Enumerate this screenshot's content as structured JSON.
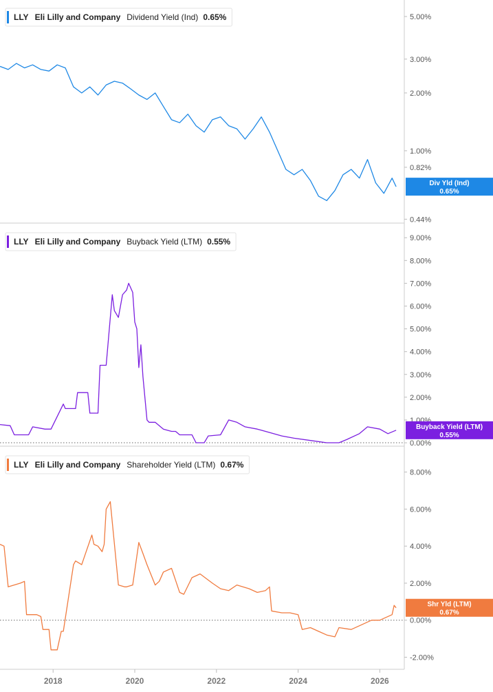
{
  "chart_data": [
    {
      "type": "line",
      "ticker": "LLY",
      "company": "Eli Lilly and Company",
      "metric": "Dividend Yield (Ind)",
      "current_value": "0.65%",
      "badge_label": "Div Yld (Ind)",
      "badge_value": "0.65%",
      "color": "#1e88e5",
      "y_scale": "log",
      "ylim": [
        0.42,
        5.8
      ],
      "y_ticks": [
        {
          "v": 5.0,
          "label": "5.00%"
        },
        {
          "v": 3.0,
          "label": "3.00%"
        },
        {
          "v": 2.0,
          "label": "2.00%"
        },
        {
          "v": 1.0,
          "label": "1.00%"
        },
        {
          "v": 0.82,
          "label": "0.82%"
        },
        {
          "v": 0.44,
          "label": "0.44%"
        }
      ],
      "zero_line": false,
      "x": [
        2016.7,
        2016.9,
        2017.1,
        2017.3,
        2017.5,
        2017.7,
        2017.9,
        2018.1,
        2018.3,
        2018.5,
        2018.7,
        2018.9,
        2019.1,
        2019.3,
        2019.5,
        2019.7,
        2019.9,
        2020.1,
        2020.3,
        2020.5,
        2020.7,
        2020.9,
        2021.1,
        2021.3,
        2021.5,
        2021.7,
        2021.9,
        2022.1,
        2022.3,
        2022.5,
        2022.7,
        2022.9,
        2023.1,
        2023.3,
        2023.5,
        2023.7,
        2023.9,
        2024.1,
        2024.3,
        2024.5,
        2024.7,
        2024.9,
        2025.1,
        2025.3,
        2025.5,
        2025.7,
        2025.9,
        2026.1,
        2026.3,
        2026.4
      ],
      "values": [
        2.75,
        2.65,
        2.85,
        2.7,
        2.8,
        2.65,
        2.6,
        2.8,
        2.7,
        2.15,
        2.0,
        2.15,
        1.95,
        2.2,
        2.3,
        2.25,
        2.1,
        1.95,
        1.85,
        2.0,
        1.7,
        1.45,
        1.4,
        1.55,
        1.35,
        1.25,
        1.45,
        1.5,
        1.35,
        1.3,
        1.15,
        1.3,
        1.5,
        1.25,
        1.0,
        0.8,
        0.75,
        0.8,
        0.7,
        0.58,
        0.55,
        0.62,
        0.75,
        0.8,
        0.72,
        0.9,
        0.68,
        0.6,
        0.72,
        0.65
      ]
    },
    {
      "type": "line",
      "ticker": "LLY",
      "company": "Eli Lilly and Company",
      "metric": "Buyback Yield (LTM)",
      "current_value": "0.55%",
      "badge_label": "Buyback Yield (LTM)",
      "badge_value": "0.55%",
      "color": "#7b1fe0",
      "y_scale": "linear",
      "ylim": [
        -0.15,
        9.4
      ],
      "y_ticks": [
        {
          "v": 9.0,
          "label": "9.00%"
        },
        {
          "v": 8.0,
          "label": "8.00%"
        },
        {
          "v": 7.0,
          "label": "7.00%"
        },
        {
          "v": 6.0,
          "label": "6.00%"
        },
        {
          "v": 5.0,
          "label": "5.00%"
        },
        {
          "v": 4.0,
          "label": "4.00%"
        },
        {
          "v": 3.0,
          "label": "3.00%"
        },
        {
          "v": 2.0,
          "label": "2.00%"
        },
        {
          "v": 1.0,
          "label": "1.00%"
        },
        {
          "v": 0.0,
          "label": "0.00%"
        }
      ],
      "zero_line": true,
      "x": [
        2016.7,
        2016.95,
        2017.05,
        2017.4,
        2017.5,
        2017.8,
        2017.95,
        2018.25,
        2018.3,
        2018.55,
        2018.6,
        2018.85,
        2018.9,
        2019.1,
        2019.15,
        2019.3,
        2019.45,
        2019.5,
        2019.6,
        2019.7,
        2019.8,
        2019.85,
        2019.95,
        2020.0,
        2020.05,
        2020.1,
        2020.15,
        2020.2,
        2020.3,
        2020.35,
        2020.5,
        2020.7,
        2020.9,
        2021.0,
        2021.1,
        2021.4,
        2021.5,
        2021.7,
        2021.8,
        2022.1,
        2022.3,
        2022.5,
        2022.7,
        2023.0,
        2023.3,
        2023.6,
        2023.9,
        2024.3,
        2024.7,
        2025.0,
        2025.2,
        2025.5,
        2025.7,
        2026.0,
        2026.2,
        2026.4
      ],
      "values": [
        0.8,
        0.75,
        0.35,
        0.35,
        0.7,
        0.6,
        0.6,
        1.7,
        1.5,
        1.5,
        2.2,
        2.2,
        1.3,
        1.3,
        3.4,
        3.4,
        6.5,
        5.8,
        5.5,
        6.5,
        6.7,
        7.0,
        6.6,
        5.3,
        5.0,
        3.3,
        4.3,
        2.9,
        1.0,
        0.9,
        0.9,
        0.6,
        0.5,
        0.5,
        0.35,
        0.35,
        0.0,
        0.0,
        0.3,
        0.35,
        1.0,
        0.9,
        0.7,
        0.6,
        0.45,
        0.3,
        0.2,
        0.1,
        0.0,
        0.0,
        0.15,
        0.4,
        0.7,
        0.6,
        0.4,
        0.55
      ]
    },
    {
      "type": "line",
      "ticker": "LLY",
      "company": "Eli Lilly and Company",
      "metric": "Shareholder Yield (LTM)",
      "current_value": "0.67%",
      "badge_label": "Shr Yld (LTM)",
      "badge_value": "0.67%",
      "color": "#f07b3f",
      "y_scale": "linear",
      "ylim": [
        -2.65,
        9.1
      ],
      "y_ticks": [
        {
          "v": 8.0,
          "label": "8.00%"
        },
        {
          "v": 6.0,
          "label": "6.00%"
        },
        {
          "v": 4.0,
          "label": "4.00%"
        },
        {
          "v": 2.0,
          "label": "2.00%"
        },
        {
          "v": 0.0,
          "label": "0.00%"
        },
        {
          "v": -2.0,
          "label": "-2.00%"
        }
      ],
      "zero_line": true,
      "x": [
        2016.7,
        2016.8,
        2016.9,
        2017.2,
        2017.3,
        2017.35,
        2017.6,
        2017.7,
        2017.75,
        2017.9,
        2017.95,
        2018.1,
        2018.2,
        2018.25,
        2018.5,
        2018.55,
        2018.7,
        2018.95,
        2019.0,
        2019.1,
        2019.2,
        2019.25,
        2019.3,
        2019.35,
        2019.4,
        2019.6,
        2019.75,
        2019.8,
        2019.95,
        2020.1,
        2020.2,
        2020.3,
        2020.5,
        2020.6,
        2020.7,
        2020.9,
        2021.1,
        2021.2,
        2021.4,
        2021.6,
        2021.9,
        2022.1,
        2022.3,
        2022.5,
        2022.8,
        2023.0,
        2023.2,
        2023.3,
        2023.35,
        2023.6,
        2023.8,
        2024.0,
        2024.1,
        2024.3,
        2024.5,
        2024.7,
        2024.9,
        2025.0,
        2025.3,
        2025.5,
        2025.8,
        2026.0,
        2026.3,
        2026.35,
        2026.4
      ],
      "values": [
        4.1,
        4.0,
        1.8,
        2.0,
        2.1,
        0.3,
        0.3,
        0.2,
        -0.5,
        -0.5,
        -1.6,
        -1.6,
        -0.6,
        -0.6,
        3.0,
        3.2,
        3.0,
        4.6,
        4.1,
        4.0,
        3.7,
        4.1,
        6.0,
        6.2,
        6.4,
        1.9,
        1.8,
        1.8,
        1.9,
        4.2,
        3.6,
        3.0,
        1.9,
        2.1,
        2.6,
        2.8,
        1.5,
        1.4,
        2.3,
        2.5,
        2.0,
        1.7,
        1.6,
        1.9,
        1.7,
        1.5,
        1.6,
        1.8,
        0.5,
        0.4,
        0.4,
        0.3,
        -0.5,
        -0.4,
        -0.6,
        -0.8,
        -0.9,
        -0.4,
        -0.5,
        -0.3,
        0.0,
        0.0,
        0.3,
        0.8,
        0.67
      ]
    }
  ],
  "x_axis": {
    "xlim": [
      2016.7,
      2026.6
    ],
    "ticks": [
      {
        "v": 2018,
        "label": "2018"
      },
      {
        "v": 2020,
        "label": "2020"
      },
      {
        "v": 2022,
        "label": "2022"
      },
      {
        "v": 2024,
        "label": "2024"
      },
      {
        "v": 2026,
        "label": "2026"
      }
    ]
  }
}
